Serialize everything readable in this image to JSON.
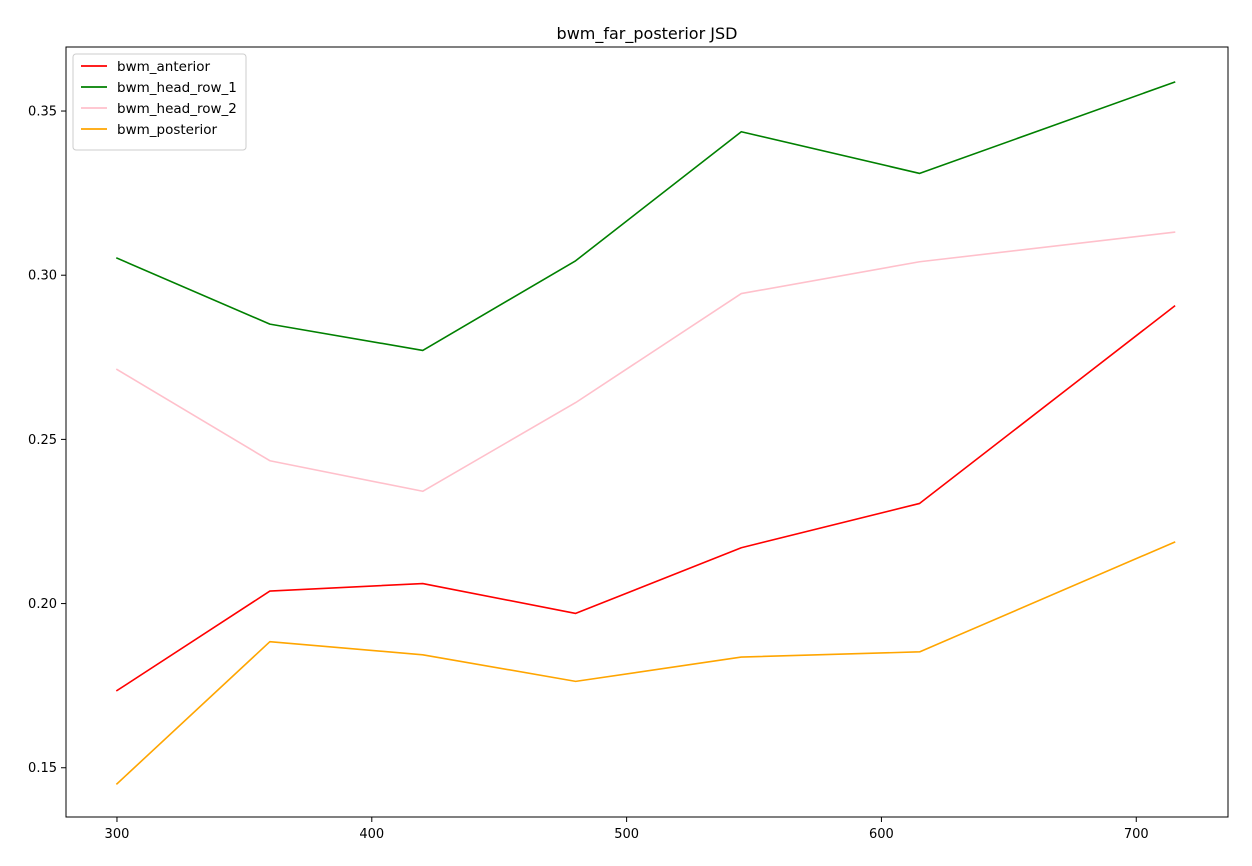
{
  "chart_data": {
    "type": "line",
    "title": "bwm_far_posterior JSD",
    "xlabel": "",
    "ylabel": "",
    "x": [
      300,
      360,
      420,
      480,
      545,
      615,
      715
    ],
    "xlim": [
      280,
      736
    ],
    "ylim": [
      0.135,
      0.3695
    ],
    "xticks": [
      300,
      400,
      500,
      600,
      700
    ],
    "yticks": [
      0.15,
      0.2,
      0.25,
      0.3,
      0.35
    ],
    "ytick_labels": [
      "0.15",
      "0.20",
      "0.25",
      "0.30",
      "0.35"
    ],
    "grid": false,
    "legend_position": "top-left",
    "series": [
      {
        "name": "bwm_anterior",
        "color": "#ff0000",
        "values": [
          0.1735,
          0.2038,
          0.2061,
          0.197,
          0.217,
          0.2305,
          0.2906
        ]
      },
      {
        "name": "bwm_head_row_1",
        "color": "#008000",
        "values": [
          0.3052,
          0.2851,
          0.2771,
          0.3044,
          0.3437,
          0.331,
          0.3588
        ]
      },
      {
        "name": "bwm_head_row_2",
        "color": "#ffc0cb",
        "values": [
          0.2713,
          0.2435,
          0.2342,
          0.2612,
          0.2944,
          0.3041,
          0.3131
        ]
      },
      {
        "name": "bwm_posterior",
        "color": "#ffa500",
        "values": [
          0.1451,
          0.1884,
          0.1844,
          0.1763,
          0.1837,
          0.1853,
          0.2187
        ]
      }
    ]
  }
}
